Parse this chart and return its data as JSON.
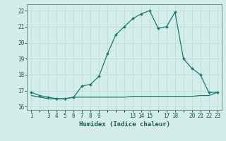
{
  "title": "",
  "xlabel": "Humidex (Indice chaleur)",
  "bg_color": "#d4edeb",
  "grid_color": "#b8d8d5",
  "line_color": "#1a7a6e",
  "marker_color": "#1a7a6e",
  "x_hours": [
    1,
    2,
    3,
    4,
    5,
    6,
    7,
    8,
    9,
    10,
    11,
    12,
    13,
    14,
    15,
    16,
    17,
    18,
    19,
    20,
    21,
    22,
    23
  ],
  "humidex_values": [
    16.9,
    16.7,
    16.6,
    16.5,
    16.5,
    16.6,
    17.3,
    17.4,
    17.9,
    19.3,
    20.5,
    21.0,
    21.5,
    21.8,
    22.0,
    20.9,
    21.0,
    21.9,
    19.0,
    18.4,
    18.0,
    16.9,
    16.9
  ],
  "flat_values": [
    16.7,
    16.6,
    16.5,
    16.5,
    16.5,
    16.6,
    16.6,
    16.6,
    16.6,
    16.6,
    16.6,
    16.6,
    16.65,
    16.65,
    16.65,
    16.65,
    16.65,
    16.65,
    16.65,
    16.65,
    16.7,
    16.7,
    16.9
  ],
  "ylim": [
    15.8,
    22.4
  ],
  "yticks": [
    16,
    17,
    18,
    19,
    20,
    21,
    22
  ],
  "xtick_positions": [
    1,
    3,
    4,
    5,
    6,
    7,
    8,
    9,
    13,
    14,
    15,
    17,
    18,
    20,
    21,
    22,
    23
  ],
  "xtick_labels": [
    "1",
    "3",
    "4",
    "5",
    "6",
    "7",
    "8",
    "9",
    "13",
    "14",
    "15",
    "17",
    "18",
    "20",
    "21",
    "22",
    "23"
  ],
  "line_width": 0.9,
  "marker_size": 2.0
}
